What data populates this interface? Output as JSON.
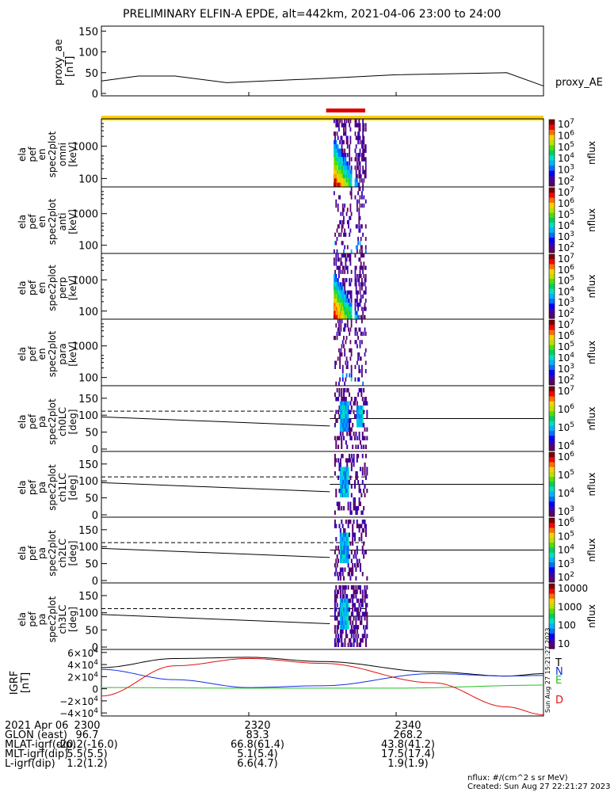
{
  "title": "PRELIMINARY ELFIN-A EPDE, alt=442km, 2021-04-06 23:00 to 24:00",
  "colors": {
    "frame": "#000000",
    "ae": "#000000",
    "sunbar": "#ffd000",
    "scibar": "#dd0000",
    "T": "#000000",
    "N": "#1030e0",
    "E": "#22c022",
    "D": "#e01010"
  },
  "panels": [
    {
      "id": "ae",
      "labels": [
        "proxy_ae",
        "[nT]"
      ],
      "ticks": [
        "150",
        "100",
        "50",
        "0"
      ],
      "right_label": "proxy_AE"
    },
    {
      "id": "en_omni",
      "labels": [
        "ela",
        "pef",
        "en",
        "spec2plot",
        "omni",
        "[keV]"
      ],
      "ticks": [
        "1000",
        "100"
      ],
      "cbar_ticks": [
        "10^7",
        "10^6",
        "10^5",
        "10^4",
        "10^3",
        "10^2"
      ],
      "cbar_unit": "nflux"
    },
    {
      "id": "en_anti",
      "labels": [
        "ela",
        "pef",
        "en",
        "spec2plot",
        "anti",
        "[keV]"
      ],
      "ticks": [
        "1000",
        "100"
      ],
      "cbar_ticks": [
        "10^7",
        "10^6",
        "10^5",
        "10^4",
        "10^3",
        "10^2"
      ],
      "cbar_unit": "nflux"
    },
    {
      "id": "en_perp",
      "labels": [
        "ela",
        "pef",
        "en",
        "spec2plot",
        "perp",
        "[keV]"
      ],
      "ticks": [
        "1000",
        "100"
      ],
      "cbar_ticks": [
        "10^7",
        "10^6",
        "10^5",
        "10^4",
        "10^3",
        "10^2"
      ],
      "cbar_unit": "nflux"
    },
    {
      "id": "en_para",
      "labels": [
        "ela",
        "pef",
        "en",
        "spec2plot",
        "para",
        "[keV]"
      ],
      "ticks": [
        "1000",
        "100"
      ],
      "cbar_ticks": [
        "10^7",
        "10^6",
        "10^5",
        "10^4",
        "10^3",
        "10^2"
      ],
      "cbar_unit": "nflux"
    },
    {
      "id": "pa_ch0",
      "labels": [
        "ela",
        "pef",
        "pa",
        "spec2plot",
        "ch0LC",
        "[deg]"
      ],
      "ticks": [
        "150",
        "100",
        "50",
        "0"
      ],
      "cbar_ticks": [
        "10^7",
        "10^6",
        "10^5",
        "10^4"
      ],
      "cbar_unit": "nflux"
    },
    {
      "id": "pa_ch1",
      "labels": [
        "ela",
        "pef",
        "pa",
        "spec2plot",
        "ch1LC",
        "[deg]"
      ],
      "ticks": [
        "150",
        "100",
        "50",
        "0"
      ],
      "cbar_ticks": [
        "10^6",
        "10^5",
        "10^4",
        "10^3"
      ],
      "cbar_unit": "nflux"
    },
    {
      "id": "pa_ch2",
      "labels": [
        "ela",
        "pef",
        "pa",
        "spec2plot",
        "ch2LC",
        "[deg]"
      ],
      "ticks": [
        "150",
        "100",
        "50",
        "0"
      ],
      "cbar_ticks": [
        "10^6",
        "10^5",
        "10^4",
        "10^3",
        "10^2"
      ],
      "cbar_unit": "nflux"
    },
    {
      "id": "pa_ch3",
      "labels": [
        "ela",
        "pef",
        "pa",
        "spec2plot",
        "ch3LC",
        "[deg]"
      ],
      "ticks": [
        "150",
        "100",
        "50",
        "0"
      ],
      "cbar_ticks": [
        "10000",
        "1000",
        "100",
        "10"
      ],
      "cbar_unit": "nflux"
    },
    {
      "id": "igrf",
      "labels": [
        "IGRF",
        "[nT]"
      ],
      "ticks": [
        "6×10^4",
        "4×10^4",
        "2×10^4",
        "0",
        "−2×10^4",
        "−4×10^4"
      ],
      "legend": [
        "T",
        "N",
        "E",
        "D"
      ]
    }
  ],
  "footer": {
    "rows": [
      [
        "2021 Apr 06",
        "2300",
        "2320",
        "2340"
      ],
      [
        "GLON (east)",
        "96.7",
        "83.3",
        "268.2"
      ],
      [
        "MLAT-igrf(dip)",
        "-20.2(-16.0)",
        "66.8(61.4)",
        "43.8(41.2)"
      ],
      [
        "MLT-igrf(dip)",
        "5.5(5.5)",
        "5.1(5.4)",
        "17.5(17.4)"
      ],
      [
        "L-igrf(dip)",
        "1.2(1.2)",
        "6.6(4.7)",
        "1.9(1.9)"
      ]
    ],
    "nflux_note": "nflux: #/(cm^2 s sr MeV)",
    "created": "Created: Sun Aug 27 22:21:27 2023",
    "side_stamp": "Sun Aug 27 15:21:27 2023"
  },
  "chart_data": {
    "type": "line",
    "x_range": [
      "23:00",
      "24:00"
    ],
    "proxy_ae": {
      "ylim": [
        0,
        160
      ],
      "t": [
        0,
        5,
        10,
        17,
        30,
        40,
        55,
        60
      ],
      "values": [
        30,
        42,
        42,
        26,
        36,
        45,
        50,
        18
      ]
    },
    "igrf": {
      "ylim": [
        -45000,
        65000
      ],
      "series": [
        {
          "name": "T",
          "t": [
            0,
            10,
            20,
            30,
            45,
            55,
            60
          ],
          "values": [
            35000,
            50000,
            52000,
            45000,
            28000,
            21000,
            25000
          ]
        },
        {
          "name": "N",
          "t": [
            0,
            10,
            20,
            30,
            45,
            55,
            60
          ],
          "values": [
            32000,
            15000,
            2000,
            5000,
            25000,
            21000,
            22000
          ]
        },
        {
          "name": "E",
          "t": [
            0,
            20,
            40,
            60
          ],
          "values": [
            2000,
            1000,
            1000,
            6000
          ]
        },
        {
          "name": "D",
          "t": [
            0,
            10,
            20,
            30,
            45,
            55,
            60
          ],
          "values": [
            -12000,
            38000,
            50000,
            42000,
            10000,
            -30000,
            -43000
          ]
        }
      ]
    }
  }
}
